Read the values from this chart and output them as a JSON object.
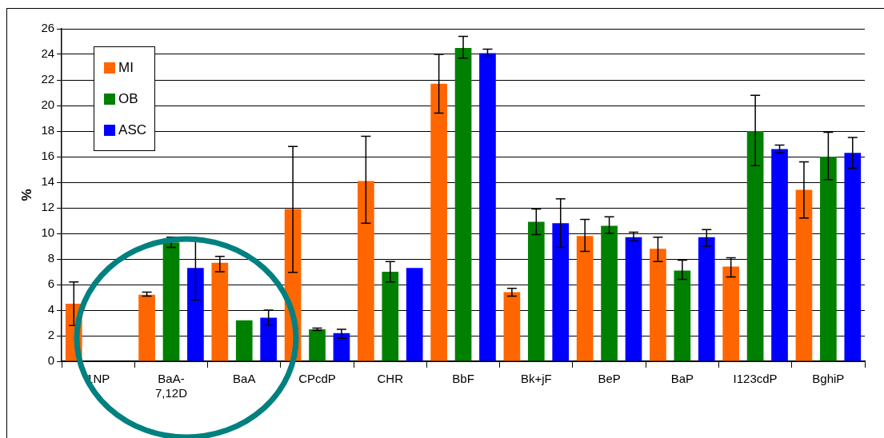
{
  "chart_data": {
    "type": "bar",
    "ylabel": "%",
    "categories": [
      "1NP",
      "BaA-\n7,12D",
      "BaA",
      "CPcdP",
      "CHR",
      "BbF",
      "Bk+jF",
      "BeP",
      "BaP",
      "I123cdP",
      "BghiP"
    ],
    "series": [
      {
        "name": "MI",
        "color": "#ff6600",
        "values": [
          4.5,
          5.2,
          7.7,
          11.9,
          14.1,
          21.7,
          5.4,
          9.8,
          8.8,
          7.4,
          13.4
        ],
        "errors": [
          [
            2.8,
            6.2
          ],
          [
            5.1,
            5.4
          ],
          [
            7.0,
            8.2
          ],
          [
            6.95,
            16.8
          ],
          [
            10.8,
            17.6
          ],
          [
            19.4,
            24.0
          ],
          [
            5.1,
            5.7
          ],
          [
            8.6,
            11.1
          ],
          [
            7.8,
            9.7
          ],
          [
            6.6,
            8.1
          ],
          [
            11.2,
            15.6
          ]
        ]
      },
      {
        "name": "OB",
        "color": "#008000",
        "values": [
          null,
          9.3,
          3.2,
          2.5,
          7.0,
          24.5,
          10.9,
          10.6,
          7.1,
          18.0,
          16.0
        ],
        "errors": [
          null,
          [
            8.9,
            9.7
          ],
          null,
          [
            2.4,
            2.6
          ],
          [
            6.2,
            7.8
          ],
          [
            23.7,
            25.4
          ],
          [
            9.9,
            11.9
          ],
          [
            10.0,
            11.3
          ],
          [
            6.4,
            7.9
          ],
          [
            15.3,
            20.8
          ],
          [
            14.2,
            17.9
          ]
        ]
      },
      {
        "name": "ASC",
        "color": "#0000ff",
        "values": [
          null,
          7.3,
          3.4,
          2.2,
          7.3,
          24.1,
          10.8,
          9.7,
          9.7,
          16.6,
          16.3
        ],
        "errors": [
          null,
          [
            4.8,
            9.6
          ],
          [
            2.8,
            4.0
          ],
          [
            1.8,
            2.5
          ],
          null,
          [
            23.9,
            24.4
          ],
          [
            8.9,
            12.7
          ],
          [
            9.4,
            10.1
          ],
          [
            9.0,
            10.3
          ],
          [
            16.3,
            16.9
          ],
          [
            15.1,
            17.5
          ]
        ]
      }
    ],
    "ylim": [
      0,
      26
    ],
    "yticks": [
      0,
      2,
      4,
      6,
      8,
      10,
      12,
      14,
      16,
      18,
      20,
      22,
      24,
      26
    ],
    "grid": "y",
    "legend": "top left"
  }
}
